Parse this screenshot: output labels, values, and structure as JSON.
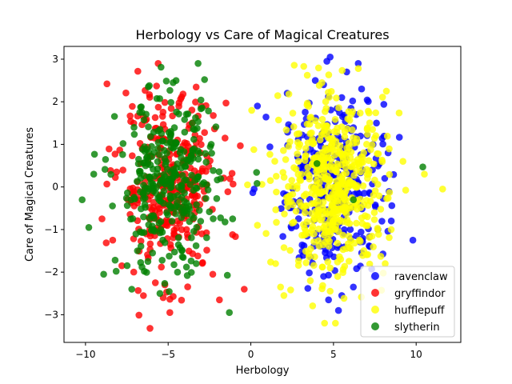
{
  "chart_data": {
    "type": "scatter",
    "title": "Herbology vs Care of Magical Creatures",
    "xlabel": "Herbology",
    "ylabel": "Care of Magical Creatures",
    "xlim": [
      -11.3,
      12.7
    ],
    "ylim": [
      -3.65,
      3.3
    ],
    "xticks": [
      -10,
      -5,
      0,
      5,
      10
    ],
    "xtick_labels": [
      "−10",
      "−5",
      "0",
      "5",
      "10"
    ],
    "yticks": [
      -3,
      -2,
      -1,
      0,
      1,
      2,
      3
    ],
    "ytick_labels": [
      "−3",
      "−2",
      "−1",
      "0",
      "1",
      "2",
      "3"
    ],
    "grid": false,
    "legend_position": "lower-right",
    "series": [
      {
        "name": "ravenclaw",
        "color": "#0000ff",
        "center": [
          5.0,
          0.0
        ],
        "spread": [
          1.5,
          1.0
        ],
        "count": 300,
        "points": [
          [
            4.8,
            3.05
          ],
          [
            4.6,
            2.95
          ],
          [
            5.8,
            2.7
          ],
          [
            3.9,
            2.5
          ],
          [
            4.4,
            2.4
          ],
          [
            6.7,
            2.3
          ],
          [
            5.5,
            2.1
          ],
          [
            0.4,
            1.9
          ],
          [
            2.2,
            2.2
          ],
          [
            7.6,
            1.5
          ],
          [
            8.3,
            0.8
          ],
          [
            8.1,
            0.2
          ],
          [
            9.8,
            -1.25
          ],
          [
            6.2,
            -2.35
          ],
          [
            5.5,
            -2.55
          ],
          [
            4.7,
            -2.65
          ],
          [
            5.3,
            -2.9
          ],
          [
            4.4,
            -2.1
          ],
          [
            0.2,
            -0.05
          ],
          [
            7.2,
            -1.4
          ]
        ]
      },
      {
        "name": "gryffindor",
        "color": "#ff0000",
        "center": [
          -5.0,
          0.0
        ],
        "spread": [
          1.5,
          1.0
        ],
        "count": 320,
        "points": [
          [
            -8.7,
            2.42
          ],
          [
            -5.7,
            2.37
          ],
          [
            -4.1,
            2.18
          ],
          [
            -1.5,
            1.97
          ],
          [
            -6.1,
            -3.32
          ],
          [
            -4.9,
            -2.95
          ],
          [
            -1.9,
            -2.65
          ],
          [
            -0.4,
            -2.4
          ],
          [
            -5.3,
            -2.6
          ],
          [
            -7.8,
            -1.85
          ],
          [
            -9.0,
            -0.75
          ],
          [
            -3.0,
            1.9
          ],
          [
            -6.5,
            1.65
          ],
          [
            -2.3,
            -2.05
          ],
          [
            -5.2,
            -2.3
          ]
        ]
      },
      {
        "name": "hufflepuff",
        "color": "#ffff00",
        "center": [
          5.0,
          0.0
        ],
        "spread": [
          1.6,
          1.0
        ],
        "count": 520,
        "points": [
          [
            6.5,
            2.78
          ],
          [
            4.3,
            2.45
          ],
          [
            2.3,
            2.18
          ],
          [
            0.05,
            1.8
          ],
          [
            -0.2,
            0.05
          ],
          [
            11.6,
            -0.05
          ],
          [
            10.5,
            0.3
          ],
          [
            1.8,
            -2.35
          ],
          [
            2.0,
            -2.55
          ],
          [
            3.6,
            -2.2
          ],
          [
            8.2,
            2.25
          ],
          [
            1.5,
            -1.8
          ],
          [
            0.4,
            -0.9
          ],
          [
            9.2,
            0.6
          ]
        ]
      },
      {
        "name": "slytherin",
        "color": "#008000",
        "center": [
          -5.0,
          0.0
        ],
        "spread": [
          1.5,
          1.0
        ],
        "count": 320,
        "points": [
          [
            -2.8,
            2.52
          ],
          [
            -4.7,
            2.45
          ],
          [
            -6.2,
            2.35
          ],
          [
            -10.2,
            -0.3
          ],
          [
            -9.8,
            -0.95
          ],
          [
            -8.9,
            -2.05
          ],
          [
            -1.3,
            -2.95
          ],
          [
            -7.2,
            -2.4
          ],
          [
            -5.5,
            -2.5
          ],
          [
            -1.1,
            -0.75
          ],
          [
            10.4,
            0.47
          ],
          [
            4.0,
            0.55
          ],
          [
            6.2,
            -0.3
          ],
          [
            -9.5,
            0.3
          ],
          [
            -3.3,
            -1.8
          ]
        ]
      }
    ]
  }
}
